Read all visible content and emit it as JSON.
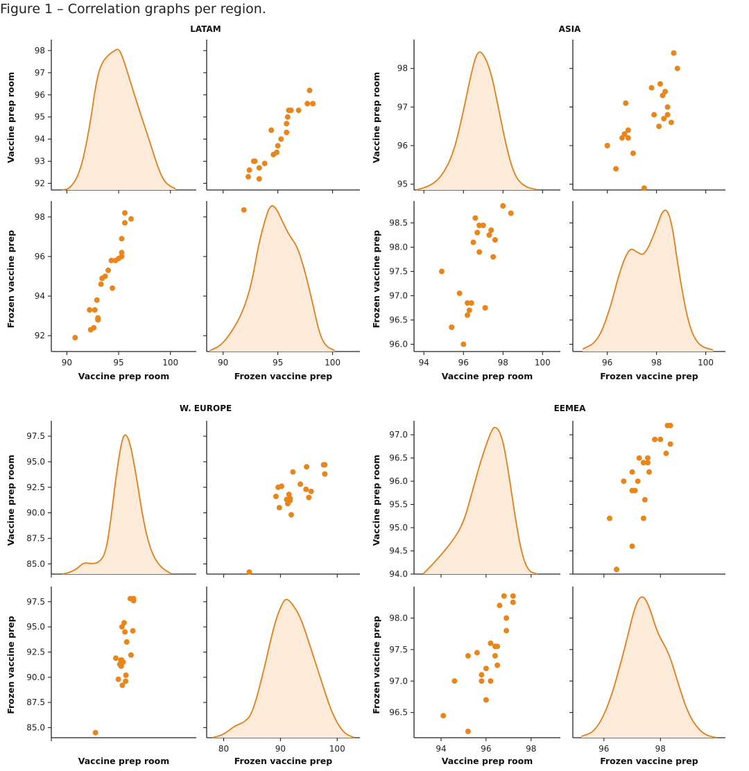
{
  "figure_title": "Figure 1 – Correlation graphs per region.",
  "colors": {
    "line": "#e07e1a",
    "fill": "#fcebd9",
    "point": "#e8861c",
    "axis": "#222222"
  },
  "chart_data": [
    {
      "type": "scatter",
      "region": "LATAM",
      "variables": [
        "Vaccine prep room",
        "Frozen vaccine prep"
      ],
      "diag_xlim": {
        "room": [
          88.5,
          102.5
        ],
        "frozen": [
          88.5,
          102.5
        ]
      },
      "room_ylim": [
        91.7,
        98.5
      ],
      "frozen_ylim": [
        91.2,
        98.8
      ],
      "diag_xticks": {
        "room": [
          90,
          95,
          100
        ],
        "frozen": [
          90,
          95,
          100
        ]
      },
      "room_yticks": [
        92,
        93,
        94,
        95,
        96,
        97,
        98
      ],
      "frozen_yticks": [
        92,
        94,
        96,
        98
      ],
      "density_room": [
        [
          89.5,
          91.7
        ],
        [
          90.3,
          91.75
        ],
        [
          91.3,
          92.5
        ],
        [
          92.2,
          94.5
        ],
        [
          92.8,
          96.5
        ],
        [
          93.3,
          97.4
        ],
        [
          94.0,
          97.8
        ],
        [
          94.6,
          98.0
        ],
        [
          95.0,
          98.1
        ],
        [
          95.4,
          97.7
        ],
        [
          96.0,
          96.8
        ],
        [
          97.0,
          95.3
        ],
        [
          98.0,
          93.9
        ],
        [
          98.8,
          92.7
        ],
        [
          99.5,
          92.0
        ],
        [
          100.5,
          91.75
        ]
      ],
      "density_frozen": [
        [
          88.8,
          91.25
        ],
        [
          89.8,
          91.5
        ],
        [
          90.8,
          92.2
        ],
        [
          91.8,
          93.2
        ],
        [
          92.6,
          94.6
        ],
        [
          93.2,
          96.5
        ],
        [
          93.8,
          97.8
        ],
        [
          94.3,
          98.6
        ],
        [
          94.8,
          98.5
        ],
        [
          95.4,
          97.8
        ],
        [
          96.0,
          97.1
        ],
        [
          96.8,
          96.5
        ],
        [
          97.5,
          95.2
        ],
        [
          98.2,
          93.6
        ],
        [
          98.8,
          92.1
        ],
        [
          99.4,
          91.45
        ],
        [
          100.2,
          91.25
        ]
      ],
      "points": [
        [
          90.8,
          91.9
        ],
        [
          92.2,
          93.3
        ],
        [
          92.3,
          92.3
        ],
        [
          92.6,
          92.4
        ],
        [
          92.7,
          93.3
        ],
        [
          92.9,
          93.8
        ],
        [
          93.0,
          92.8
        ],
        [
          93.0,
          92.9
        ],
        [
          93.3,
          94.6
        ],
        [
          93.4,
          94.9
        ],
        [
          93.7,
          95.0
        ],
        [
          94.0,
          95.3
        ],
        [
          94.3,
          95.8
        ],
        [
          94.4,
          94.4
        ],
        [
          94.7,
          95.8
        ],
        [
          95.0,
          95.9
        ],
        [
          95.3,
          96.0
        ],
        [
          95.3,
          96.2
        ],
        [
          95.3,
          96.9
        ],
        [
          95.6,
          97.7
        ],
        [
          95.6,
          98.2
        ],
        [
          96.2,
          97.9
        ]
      ]
    },
    {
      "type": "scatter",
      "region": "ASIA",
      "variables": [
        "Vaccine prep room",
        "Frozen vaccine prep"
      ],
      "diag_xlim": {
        "room": [
          93.5,
          100.9
        ],
        "frozen": [
          94.6,
          100.8
        ]
      },
      "room_ylim": [
        94.85,
        98.75
      ],
      "frozen_ylim": [
        95.85,
        98.95
      ],
      "diag_xticks": {
        "room": [
          94,
          96,
          98,
          100
        ],
        "frozen": [
          96,
          98,
          100
        ]
      },
      "room_yticks": [
        95,
        96,
        97,
        98
      ],
      "frozen_yticks": [
        96.0,
        96.5,
        97.0,
        97.5,
        98.0,
        98.5
      ],
      "density_room": [
        [
          93.6,
          94.85
        ],
        [
          94.3,
          94.95
        ],
        [
          94.9,
          95.2
        ],
        [
          95.5,
          95.8
        ],
        [
          96.0,
          96.9
        ],
        [
          96.4,
          97.9
        ],
        [
          96.7,
          98.45
        ],
        [
          97.0,
          98.4
        ],
        [
          97.4,
          97.9
        ],
        [
          97.8,
          96.9
        ],
        [
          98.2,
          95.9
        ],
        [
          98.6,
          95.2
        ],
        [
          99.1,
          94.93
        ],
        [
          99.7,
          94.86
        ]
      ],
      "density_frozen": [
        [
          95.0,
          95.9
        ],
        [
          95.6,
          96.05
        ],
        [
          96.1,
          96.7
        ],
        [
          96.5,
          97.5
        ],
        [
          96.9,
          98.0
        ],
        [
          97.2,
          97.9
        ],
        [
          97.5,
          97.82
        ],
        [
          97.9,
          98.25
        ],
        [
          98.3,
          98.85
        ],
        [
          98.6,
          98.6
        ],
        [
          98.9,
          97.5
        ],
        [
          99.3,
          96.4
        ],
        [
          99.7,
          95.97
        ],
        [
          100.3,
          95.88
        ]
      ],
      "points": [
        [
          94.9,
          97.5
        ],
        [
          95.4,
          96.35
        ],
        [
          95.8,
          97.05
        ],
        [
          96.0,
          96.0
        ],
        [
          96.2,
          96.85
        ],
        [
          96.2,
          96.6
        ],
        [
          96.3,
          96.7
        ],
        [
          96.4,
          96.85
        ],
        [
          96.5,
          98.1
        ],
        [
          96.6,
          98.6
        ],
        [
          96.7,
          98.3
        ],
        [
          96.8,
          97.9
        ],
        [
          96.8,
          98.45
        ],
        [
          97.0,
          98.45
        ],
        [
          97.1,
          96.75
        ],
        [
          97.3,
          98.25
        ],
        [
          97.4,
          98.35
        ],
        [
          97.5,
          97.8
        ],
        [
          97.6,
          98.15
        ],
        [
          98.0,
          98.85
        ],
        [
          98.4,
          98.7
        ]
      ]
    },
    {
      "type": "scatter",
      "region": "W. EUROPE",
      "variables": [
        "Vaccine prep room",
        "Frozen vaccine prep"
      ],
      "diag_xlim": {
        "room": [
          72,
          112
        ],
        "frozen": [
          77,
          104
        ]
      },
      "room_ylim": [
        84,
        99
      ],
      "frozen_ylim": [
        84,
        99
      ],
      "diag_xticks": {
        "room": [],
        "frozen": [
          80,
          90,
          100
        ]
      },
      "room_yticks": [
        85.0,
        87.5,
        90.0,
        92.5,
        95.0,
        97.5
      ],
      "frozen_yticks": [
        85.0,
        87.5,
        90.0,
        92.5,
        95.0,
        97.5
      ],
      "density_room": [
        [
          75,
          84.0
        ],
        [
          77,
          84.15
        ],
        [
          79,
          84.5
        ],
        [
          81,
          85.15
        ],
        [
          83,
          85.0
        ],
        [
          85,
          85.1
        ],
        [
          87,
          86.0
        ],
        [
          88.5,
          89.5
        ],
        [
          90,
          94.0
        ],
        [
          91.5,
          97.2
        ],
        [
          92.5,
          97.8
        ],
        [
          93.8,
          96.8
        ],
        [
          95.5,
          93.5
        ],
        [
          97.5,
          89.0
        ],
        [
          99.5,
          86.2
        ],
        [
          102,
          84.7
        ],
        [
          105,
          84.05
        ]
      ],
      "density_frozen": [
        [
          78,
          84.0
        ],
        [
          80,
          84.3
        ],
        [
          82,
          85.2
        ],
        [
          83.5,
          85.5
        ],
        [
          85,
          86.3
        ],
        [
          87,
          90.5
        ],
        [
          89,
          95.5
        ],
        [
          90.5,
          97.6
        ],
        [
          91.2,
          97.8
        ],
        [
          92.2,
          97.2
        ],
        [
          93.5,
          96.0
        ],
        [
          95,
          93.5
        ],
        [
          97,
          90.0
        ],
        [
          99,
          86.5
        ],
        [
          101,
          84.5
        ],
        [
          103,
          84.0
        ]
      ],
      "points": [
        [
          84.2,
          84.5
        ],
        [
          89.8,
          91.9
        ],
        [
          90.5,
          89.8
        ],
        [
          90.9,
          91.3
        ],
        [
          91.2,
          91.7
        ],
        [
          91.3,
          91.1
        ],
        [
          91.4,
          91.7
        ],
        [
          91.5,
          95.0
        ],
        [
          91.6,
          89.2
        ],
        [
          91.8,
          91.5
        ],
        [
          92.1,
          95.4
        ],
        [
          92.3,
          94.5
        ],
        [
          92.5,
          89.6
        ],
        [
          92.6,
          90.2
        ],
        [
          92.8,
          93.5
        ],
        [
          93.8,
          97.8
        ],
        [
          94.0,
          92.2
        ],
        [
          94.5,
          94.6
        ],
        [
          94.7,
          97.6
        ],
        [
          94.7,
          97.8
        ]
      ]
    },
    {
      "type": "scatter",
      "region": "EEMEA",
      "variables": [
        "Vaccine prep room",
        "Frozen vaccine prep"
      ],
      "diag_xlim": {
        "room": [
          92.8,
          99.3
        ],
        "frozen": [
          94.9,
          100.3
        ]
      },
      "room_ylim": [
        94.0,
        97.3
      ],
      "frozen_ylim": [
        96.1,
        98.5
      ],
      "diag_xticks": {
        "room": [
          94,
          96,
          98
        ],
        "frozen": [
          96,
          98
        ]
      },
      "room_yticks": [
        94.0,
        94.5,
        95.0,
        95.5,
        96.0,
        96.5,
        97.0
      ],
      "frozen_yticks": [
        96.5,
        97.0,
        97.5,
        98.0
      ],
      "density_room": [
        [
          93.2,
          94.0
        ],
        [
          93.8,
          94.3
        ],
        [
          94.5,
          94.7
        ],
        [
          95.0,
          95.1
        ],
        [
          95.4,
          95.8
        ],
        [
          95.8,
          96.5
        ],
        [
          96.2,
          97.05
        ],
        [
          96.4,
          97.2
        ],
        [
          96.7,
          97.0
        ],
        [
          97.0,
          96.2
        ],
        [
          97.3,
          95.2
        ],
        [
          97.6,
          94.4
        ],
        [
          97.9,
          94.05
        ],
        [
          98.3,
          94.0
        ]
      ],
      "density_frozen": [
        [
          95.2,
          96.12
        ],
        [
          95.7,
          96.2
        ],
        [
          96.2,
          96.65
        ],
        [
          96.7,
          97.45
        ],
        [
          97.1,
          98.2
        ],
        [
          97.35,
          98.38
        ],
        [
          97.6,
          98.2
        ],
        [
          97.9,
          97.75
        ],
        [
          98.3,
          97.45
        ],
        [
          98.6,
          97.0
        ],
        [
          99.0,
          96.45
        ],
        [
          99.5,
          96.15
        ],
        [
          100.0,
          96.1
        ]
      ],
      "points": [
        [
          94.1,
          96.45
        ],
        [
          94.6,
          97.0
        ],
        [
          95.2,
          96.2
        ],
        [
          95.2,
          97.4
        ],
        [
          95.6,
          97.45
        ],
        [
          95.8,
          97.0
        ],
        [
          95.8,
          97.1
        ],
        [
          96.0,
          96.7
        ],
        [
          96.0,
          97.2
        ],
        [
          96.2,
          97.6
        ],
        [
          96.2,
          97.0
        ],
        [
          96.4,
          97.4
        ],
        [
          96.4,
          97.55
        ],
        [
          96.5,
          97.25
        ],
        [
          96.5,
          97.55
        ],
        [
          96.6,
          98.2
        ],
        [
          96.8,
          98.35
        ],
        [
          96.9,
          97.8
        ],
        [
          96.9,
          98.0
        ],
        [
          97.2,
          98.35
        ],
        [
          97.2,
          98.25
        ]
      ]
    }
  ]
}
